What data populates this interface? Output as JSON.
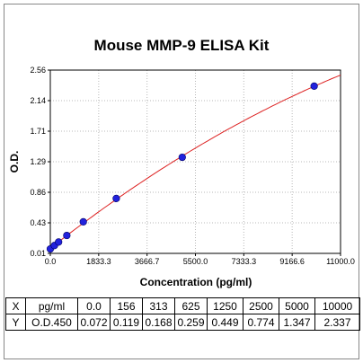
{
  "chart_data": {
    "type": "scatter",
    "title": "Mouse MMP-9 ELISA Kit",
    "xlabel": "Concentration (pg/ml)",
    "ylabel": "O.D.",
    "xlim": [
      0,
      11000
    ],
    "ylim": [
      0.01,
      2.56
    ],
    "x_ticks": [
      "0.0",
      "1833.3",
      "3666.7",
      "5500.0",
      "7333.3",
      "9166.6",
      "11000.0"
    ],
    "y_ticks": [
      "0.01",
      "0.43",
      "0.86",
      "1.29",
      "1.71",
      "2.14",
      "2.56"
    ],
    "x": [
      0,
      156,
      313,
      625,
      1250,
      2500,
      5000,
      10000
    ],
    "y": [
      0.072,
      0.119,
      0.168,
      0.259,
      0.449,
      0.774,
      1.347,
      2.337
    ],
    "fit_curve": true,
    "point_color": "#2222dd",
    "curve_color": "#dd2222",
    "grid": true
  },
  "table": {
    "rows": [
      [
        "X",
        "pg/ml",
        "0.0",
        "156",
        "313",
        "625",
        "1250",
        "2500",
        "5000",
        "10000"
      ],
      [
        "Y",
        "O.D.450",
        "0.072",
        "0.119",
        "0.168",
        "0.259",
        "0.449",
        "0.774",
        "1.347",
        "2.337"
      ]
    ]
  }
}
